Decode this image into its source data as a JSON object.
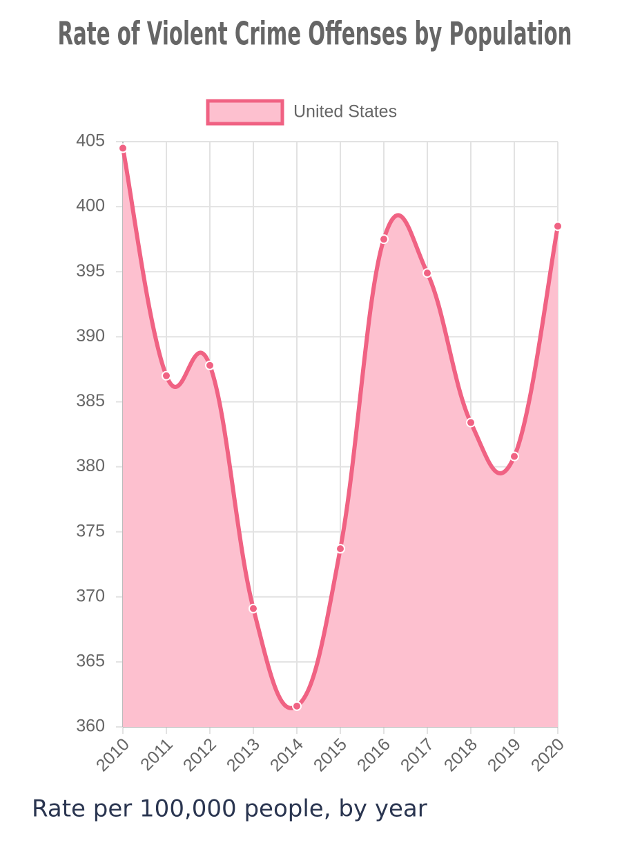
{
  "chart_data": {
    "type": "line",
    "title": "Rate of Violent Crime Offenses by Population",
    "categories": [
      "2010",
      "2011",
      "2012",
      "2013",
      "2014",
      "2015",
      "2016",
      "2017",
      "2018",
      "2019",
      "2020"
    ],
    "series": [
      {
        "name": "United States",
        "color": "#f06283",
        "fill": "#fdc0cf",
        "values": [
          404.5,
          387.0,
          387.8,
          369.1,
          361.6,
          373.7,
          397.5,
          394.9,
          383.4,
          380.8,
          398.5
        ]
      }
    ],
    "ylim": [
      360,
      405
    ],
    "yticks": [
      360,
      365,
      370,
      375,
      380,
      385,
      390,
      395,
      400,
      405
    ],
    "grid": true,
    "legend": "top",
    "caption": "Rate per 100,000 people, by year"
  }
}
